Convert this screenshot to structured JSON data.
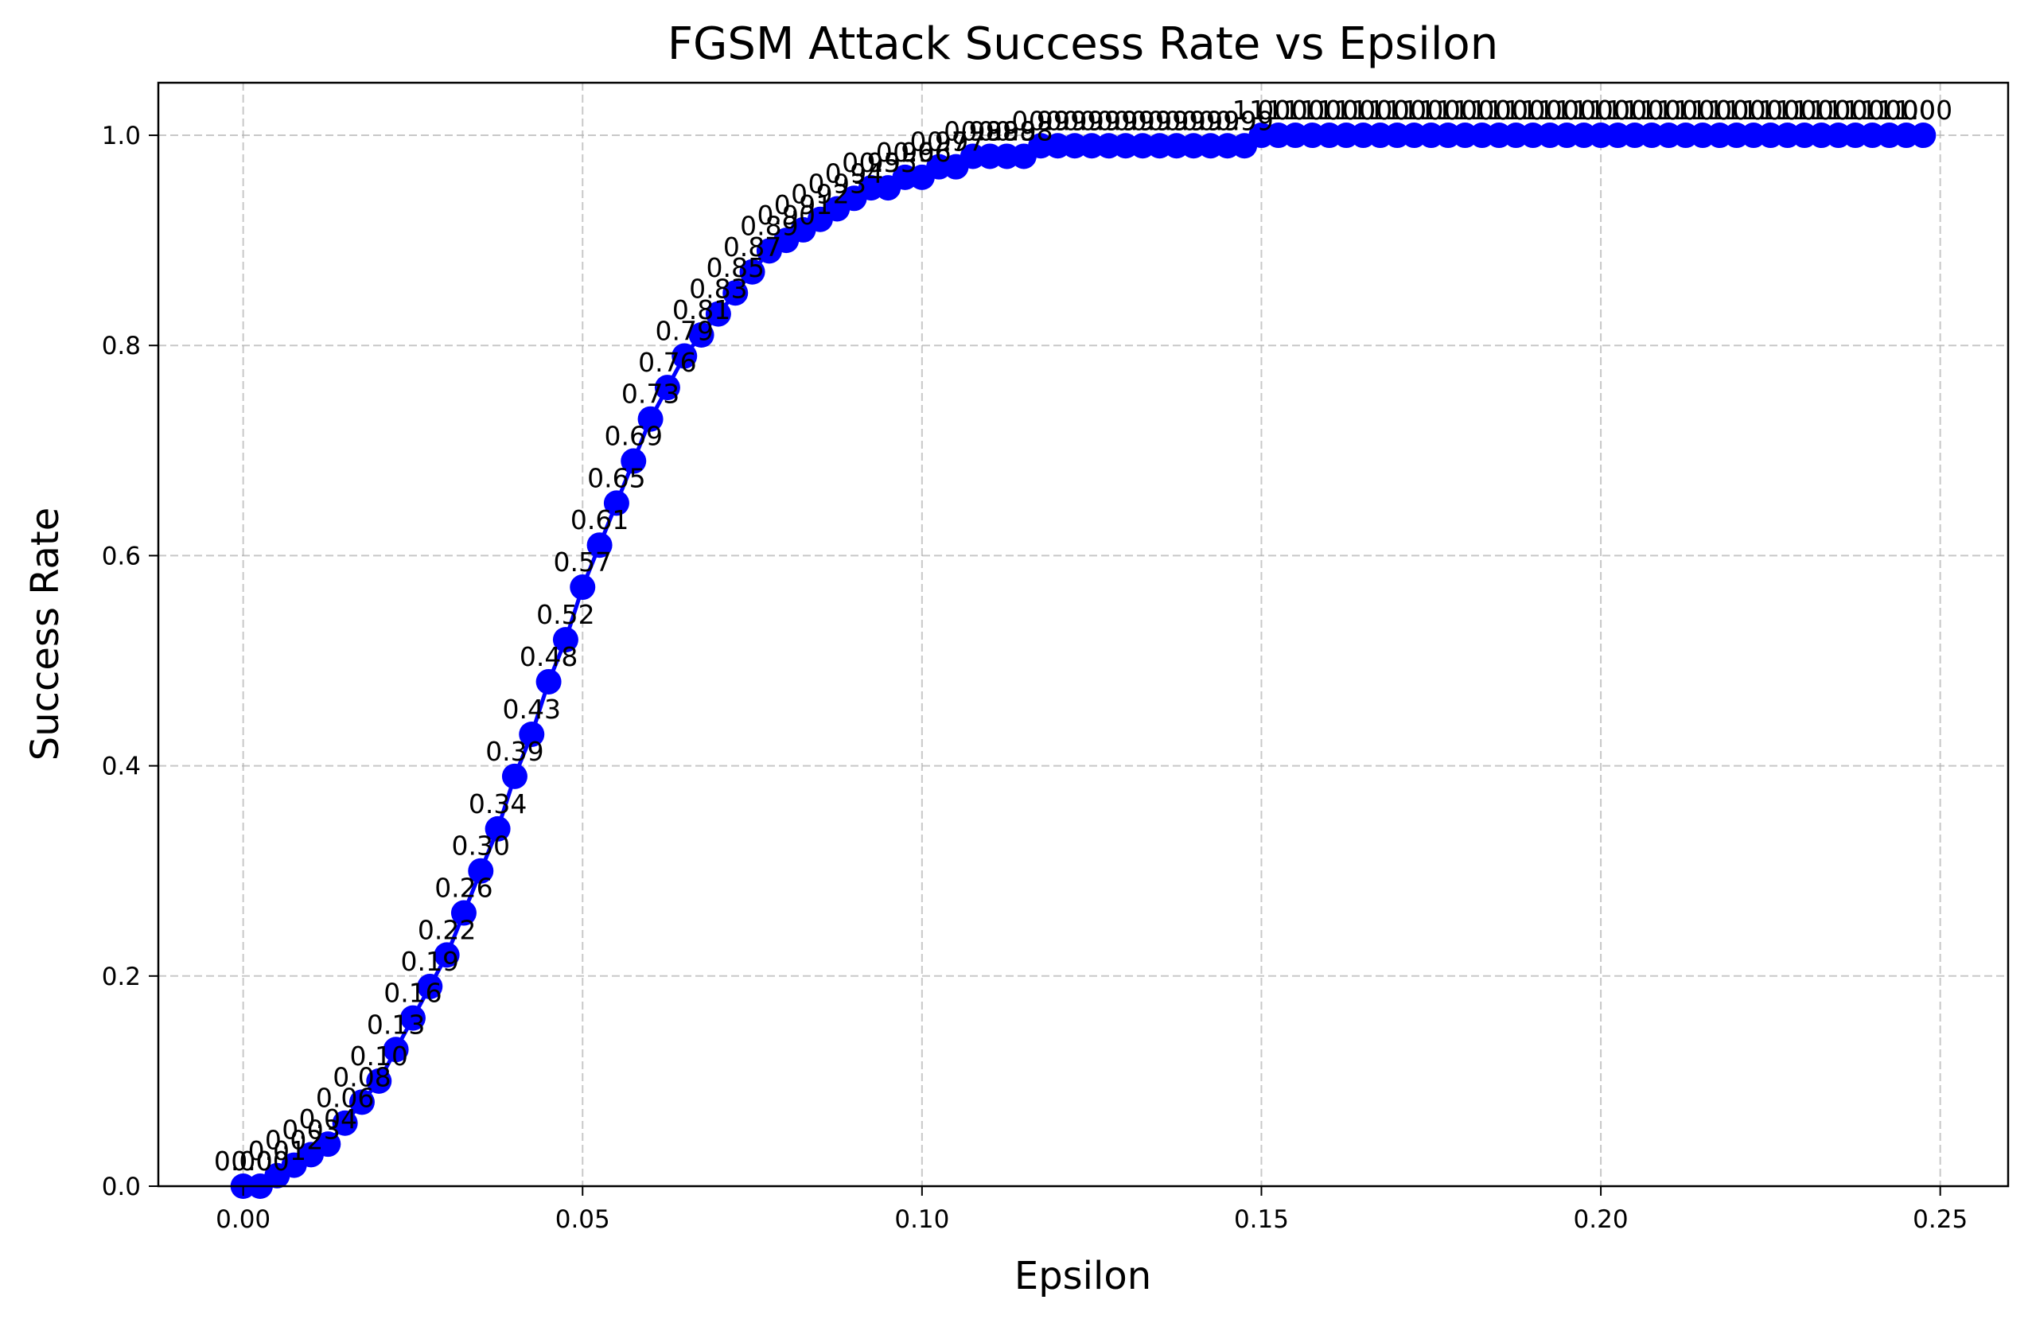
{
  "chart_data": {
    "type": "line",
    "title": "FGSM Attack Success Rate vs Epsilon",
    "xlabel": "Epsilon",
    "ylabel": "Success Rate",
    "xlim": [
      -0.0125,
      0.26
    ],
    "ylim": [
      0.0,
      1.05
    ],
    "xticks": [
      "0.00",
      "0.05",
      "0.10",
      "0.15",
      "0.20",
      "0.25"
    ],
    "yticks": [
      "0.0",
      "0.2",
      "0.4",
      "0.6",
      "0.8",
      "1.0"
    ],
    "grid": true,
    "grid_style": "dashed",
    "series": [
      {
        "color": "#0000ff",
        "marker": "circle",
        "x": [
          0.0,
          0.0025,
          0.005,
          0.0075,
          0.01,
          0.0125,
          0.015,
          0.0175,
          0.02,
          0.0225,
          0.025,
          0.0275,
          0.03,
          0.0325,
          0.035,
          0.0375,
          0.04,
          0.0425,
          0.045,
          0.0475,
          0.05,
          0.0525,
          0.055,
          0.0575,
          0.06,
          0.0625,
          0.065,
          0.0675,
          0.07,
          0.0725,
          0.075,
          0.0775,
          0.08,
          0.0825,
          0.085,
          0.0875,
          0.09,
          0.0925,
          0.095,
          0.0975,
          0.1,
          0.1025,
          0.105,
          0.1075,
          0.11,
          0.1125,
          0.115,
          0.1175,
          0.12,
          0.1225,
          0.125,
          0.1275,
          0.13,
          0.1325,
          0.135,
          0.1375,
          0.14,
          0.1425,
          0.145,
          0.1475,
          0.15,
          0.1525,
          0.155,
          0.1575,
          0.16,
          0.1625,
          0.165,
          0.1675,
          0.17,
          0.1725,
          0.175,
          0.1775,
          0.18,
          0.1825,
          0.185,
          0.1875,
          0.19,
          0.1925,
          0.195,
          0.1975,
          0.2,
          0.2025,
          0.205,
          0.2075,
          0.21,
          0.2125,
          0.215,
          0.2175,
          0.22,
          0.2225,
          0.225,
          0.2275,
          0.23,
          0.2325,
          0.235,
          0.2375,
          0.24,
          0.2425,
          0.245,
          0.2475
        ],
        "y": [
          0.0,
          0.0,
          0.01,
          0.02,
          0.03,
          0.04,
          0.06,
          0.08,
          0.1,
          0.13,
          0.16,
          0.19,
          0.22,
          0.26,
          0.3,
          0.34,
          0.39,
          0.43,
          0.48,
          0.52,
          0.57,
          0.61,
          0.65,
          0.69,
          0.73,
          0.76,
          0.79,
          0.81,
          0.83,
          0.85,
          0.87,
          0.89,
          0.9,
          0.91,
          0.92,
          0.93,
          0.94,
          0.95,
          0.95,
          0.96,
          0.96,
          0.97,
          0.97,
          0.98,
          0.98,
          0.98,
          0.98,
          0.99,
          0.99,
          0.99,
          0.99,
          0.99,
          0.99,
          0.99,
          0.99,
          0.99,
          0.99,
          0.99,
          0.99,
          0.99,
          1.0,
          1.0,
          1.0,
          1.0,
          1.0,
          1.0,
          1.0,
          1.0,
          1.0,
          1.0,
          1.0,
          1.0,
          1.0,
          1.0,
          1.0,
          1.0,
          1.0,
          1.0,
          1.0,
          1.0,
          1.0,
          1.0,
          1.0,
          1.0,
          1.0,
          1.0,
          1.0,
          1.0,
          1.0,
          1.0,
          1.0,
          1.0,
          1.0,
          1.0,
          1.0,
          1.0,
          1.0,
          1.0,
          1.0,
          1.0
        ],
        "labels": [
          "0.00",
          "0.00",
          "0.01",
          "0.02",
          "0.03",
          "0.04",
          "0.06",
          "0.08",
          "0.10",
          "0.13",
          "0.16",
          "0.19",
          "0.22",
          "0.26",
          "0.30",
          "0.34",
          "0.39",
          "0.43",
          "0.48",
          "0.52",
          "0.57",
          "0.61",
          "0.65",
          "0.69",
          "0.73",
          "0.76",
          "0.79",
          "0.81",
          "0.83",
          "0.85",
          "0.87",
          "0.89",
          "0.90",
          "0.91",
          "0.92",
          "0.93",
          "0.94",
          "0.95",
          "0.95",
          "0.96",
          "0.96",
          "0.97",
          "0.97",
          "0.98",
          "0.98",
          "0.98",
          "0.98",
          "0.99",
          "0.99",
          "0.99",
          "0.99",
          "0.99",
          "0.99",
          "0.99",
          "0.99",
          "0.99",
          "0.99",
          "0.99",
          "0.99",
          "0.99",
          "1.00",
          "1.00",
          "1.00",
          "1.00",
          "1.00",
          "1.00",
          "1.00",
          "1.00",
          "1.00",
          "1.00",
          "1.00",
          "1.00",
          "1.00",
          "1.00",
          "1.00",
          "1.00",
          "1.00",
          "1.00",
          "1.00",
          "1.00",
          "1.00",
          "1.00",
          "1.00",
          "1.00",
          "1.00",
          "1.00",
          "1.00",
          "1.00",
          "1.00",
          "1.00",
          "1.00",
          "1.00",
          "1.00",
          "1.00",
          "1.00",
          "1.00",
          "1.00",
          "1.00",
          "1.00",
          "1.00"
        ]
      }
    ]
  }
}
